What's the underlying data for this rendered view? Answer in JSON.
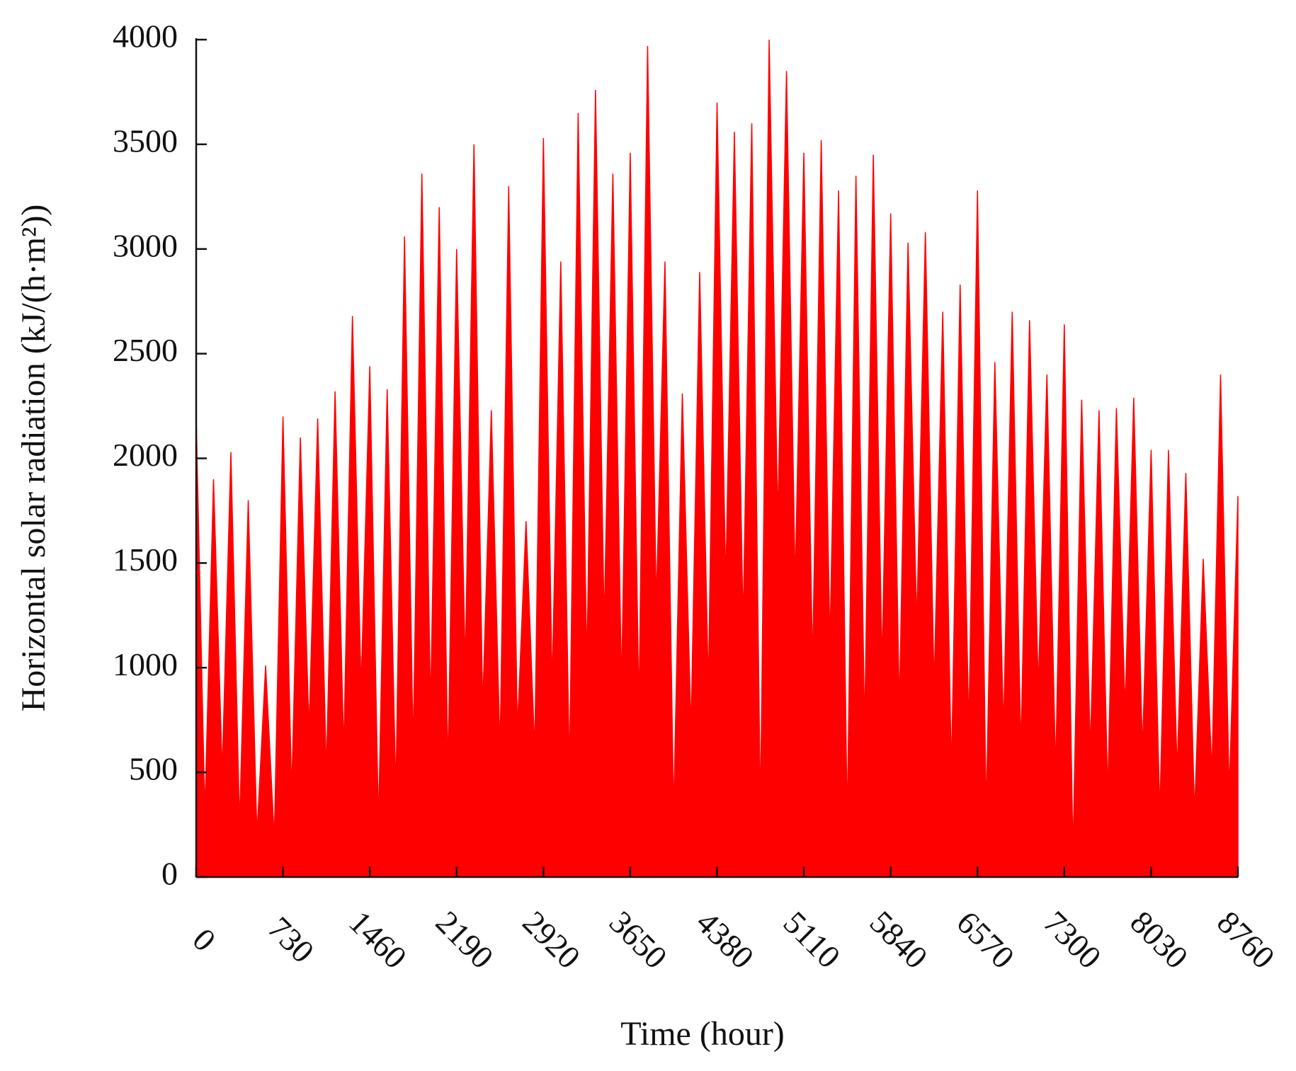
{
  "chart_data": {
    "type": "area",
    "xlabel": "Time (hour)",
    "ylabel": "Horizontal solar radiation (kJ/(h·m²))",
    "color": "#ff0000",
    "xlim": [
      0,
      8760
    ],
    "xticks": [
      0,
      730,
      1460,
      2190,
      2920,
      3650,
      4380,
      5110,
      5840,
      6570,
      7300,
      8030,
      8760
    ],
    "ylim": [
      0,
      4000
    ],
    "yticks": [
      0,
      500,
      1000,
      1500,
      2000,
      2500,
      3000,
      3500,
      4000
    ],
    "grid": false,
    "x": [
      0,
      73,
      146,
      219,
      292,
      365,
      438,
      511,
      584,
      657,
      730,
      803,
      876,
      949,
      1022,
      1095,
      1168,
      1241,
      1314,
      1387,
      1460,
      1533,
      1606,
      1679,
      1752,
      1825,
      1898,
      1971,
      2044,
      2117,
      2190,
      2263,
      2336,
      2409,
      2482,
      2555,
      2628,
      2701,
      2774,
      2847,
      2920,
      2993,
      3066,
      3139,
      3212,
      3285,
      3358,
      3431,
      3504,
      3577,
      3650,
      3723,
      3796,
      3869,
      3942,
      4015,
      4088,
      4161,
      4234,
      4307,
      4380,
      4453,
      4526,
      4599,
      4672,
      4745,
      4818,
      4891,
      4964,
      5037,
      5110,
      5183,
      5256,
      5329,
      5402,
      5475,
      5548,
      5621,
      5694,
      5767,
      5840,
      5913,
      5986,
      6059,
      6132,
      6205,
      6278,
      6351,
      6424,
      6497,
      6570,
      6643,
      6716,
      6789,
      6862,
      6935,
      7008,
      7081,
      7154,
      7227,
      7300,
      7373,
      7446,
      7519,
      7592,
      7665,
      7738,
      7811,
      7884,
      7957,
      8030,
      8103,
      8176,
      8249,
      8322,
      8395,
      8468,
      8541,
      8614,
      8687,
      8760
    ],
    "values": [
      2200,
      300,
      1900,
      500,
      2030,
      250,
      1800,
      200,
      1010,
      180,
      2200,
      400,
      2100,
      700,
      2190,
      500,
      2320,
      600,
      2680,
      900,
      2440,
      250,
      2330,
      400,
      3060,
      600,
      3360,
      800,
      3200,
      500,
      3000,
      1000,
      3500,
      800,
      2230,
      600,
      3300,
      700,
      1700,
      600,
      3530,
      900,
      2940,
      500,
      3650,
      1000,
      3760,
      1200,
      3360,
      900,
      3460,
      800,
      3970,
      1300,
      2940,
      300,
      2310,
      700,
      2890,
      900,
      3700,
      1400,
      3560,
      1200,
      3600,
      300,
      4000,
      1700,
      3850,
      1400,
      3460,
      1000,
      3520,
      1100,
      3280,
      250,
      3350,
      700,
      3450,
      1000,
      3170,
      800,
      3030,
      1200,
      3080,
      900,
      2700,
      500,
      2830,
      700,
      3280,
      300,
      2460,
      700,
      2700,
      600,
      2660,
      900,
      2400,
      500,
      2640,
      100,
      2280,
      600,
      2230,
      400,
      2240,
      800,
      2290,
      600,
      2040,
      300,
      2040,
      500,
      1930,
      300,
      1520,
      500,
      2400,
      400,
      1820
    ]
  }
}
